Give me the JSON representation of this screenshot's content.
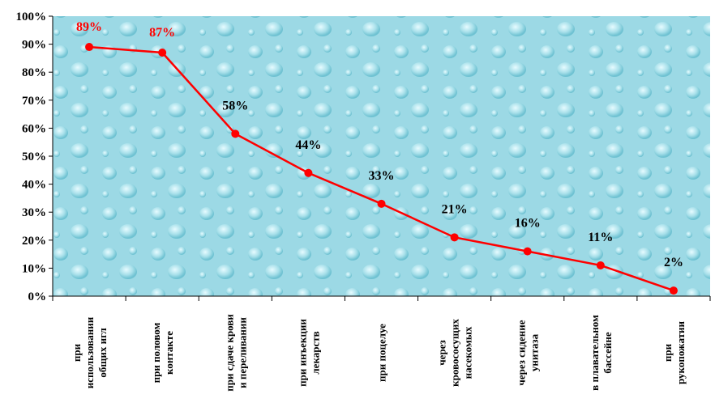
{
  "chart_data": {
    "type": "line",
    "categories": [
      [
        "при",
        "использовании",
        "общих игл"
      ],
      [
        "при половом",
        "контакте"
      ],
      [
        "при сдаче крови",
        "и переливании"
      ],
      [
        "при инъекции",
        "лекарств"
      ],
      [
        "при поцелуе"
      ],
      [
        "через",
        "кровососущих",
        "насекомых"
      ],
      [
        "через сидение",
        "унитаза"
      ],
      [
        "в плавательном",
        "бассейне"
      ],
      [
        "при",
        "рукопожатии"
      ]
    ],
    "values": [
      89,
      87,
      58,
      44,
      33,
      21,
      16,
      11,
      2
    ],
    "data_labels": [
      "89%",
      "87%",
      "58%",
      "44%",
      "33%",
      "21%",
      "16%",
      "11%",
      "2%"
    ],
    "label_colors": [
      "#ff0000",
      "#ff0000",
      "#000000",
      "#000000",
      "#000000",
      "#000000",
      "#000000",
      "#000000",
      "#000000"
    ],
    "yticks": [
      "0%",
      "10%",
      "20%",
      "30%",
      "40%",
      "50%",
      "60%",
      "70%",
      "80%",
      "90%",
      "100%"
    ],
    "ylim": [
      0,
      100
    ],
    "grid": false,
    "line_color": "#ff0000",
    "plot_background": "#9fdbe6"
  }
}
